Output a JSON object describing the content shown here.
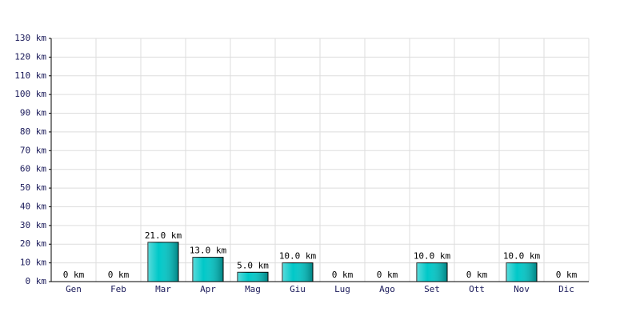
{
  "chart_data": {
    "type": "bar",
    "categories": [
      "Gen",
      "Feb",
      "Mar",
      "Apr",
      "Mag",
      "Giu",
      "Lug",
      "Ago",
      "Set",
      "Ott",
      "Nov",
      "Dic"
    ],
    "values": [
      0,
      0,
      21,
      13,
      5,
      10,
      0,
      0,
      10,
      0,
      10,
      0
    ],
    "value_labels": [
      "0 km",
      "0 km",
      "21.0 km",
      "13.0 km",
      "5.0 km",
      "10.0 km",
      "0 km",
      "0 km",
      "10.0 km",
      "0 km",
      "10.0 km",
      "0 km"
    ],
    "color": "#00c8c8",
    "ylim": [
      0,
      130
    ],
    "yticks": [
      {
        "value": 0,
        "label": "0 km"
      },
      {
        "value": 10,
        "label": "10 km"
      },
      {
        "value": 20,
        "label": "20 km"
      },
      {
        "value": 30,
        "label": "30 km"
      },
      {
        "value": 40,
        "label": "40 km"
      },
      {
        "value": 50,
        "label": "50 km"
      },
      {
        "value": 60,
        "label": "60 km"
      },
      {
        "value": 70,
        "label": "70 km"
      },
      {
        "value": 80,
        "label": "80 km"
      },
      {
        "value": 90,
        "label": "90 km"
      },
      {
        "value": 100,
        "label": "100 km"
      },
      {
        "value": 110,
        "label": "110 km"
      },
      {
        "value": 120,
        "label": "120 km"
      },
      {
        "value": 130,
        "label": "130 km"
      }
    ],
    "grid": true
  }
}
